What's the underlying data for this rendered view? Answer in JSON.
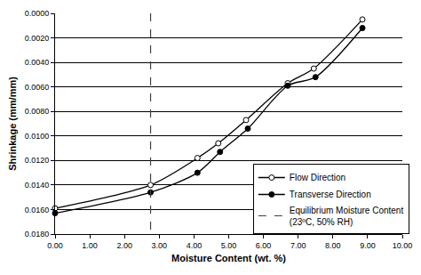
{
  "chart_data": {
    "type": "line",
    "x_label": "Moisture Content (wt. %)",
    "y_label": "Shrinkage (mm/mm)",
    "series": [
      {
        "name": "Flow Direction",
        "color": "#000000",
        "marker": "hollow circle",
        "line_style": "smooth",
        "x": [
          0.0,
          2.75,
          4.1,
          4.7,
          5.5,
          6.7,
          7.45,
          8.85
        ],
        "values": [
          0.0159,
          0.014,
          0.0118,
          0.0106,
          0.0087,
          0.0057,
          0.0045,
          0.0005
        ]
      },
      {
        "name": "Transverse Direction",
        "color": "#000000",
        "marker": "circle",
        "line_style": "smooth",
        "x": [
          0.0,
          2.75,
          4.1,
          4.75,
          5.55,
          6.7,
          7.5,
          8.85
        ],
        "values": [
          0.0163,
          0.0146,
          0.013,
          0.0113,
          0.0094,
          0.0059,
          0.0052,
          0.0012
        ]
      },
      {
        "name": "Equilibrium Moisture Content (23ºC, 50% RH)",
        "color": "#404040",
        "marker": "none",
        "line_style": "dashed",
        "x": [
          2.75,
          2.75
        ],
        "values": [
          0.0,
          0.018
        ]
      }
    ],
    "xlim": [
      0,
      10
    ],
    "xticks": [
      {
        "value": 0,
        "label": "0.00"
      },
      {
        "value": 1,
        "label": "1.00"
      },
      {
        "value": 2,
        "label": "2.00"
      },
      {
        "value": 3,
        "label": "3.00"
      },
      {
        "value": 4,
        "label": "4.00"
      },
      {
        "value": 5,
        "label": "5.00"
      },
      {
        "value": 6,
        "label": "6.00"
      },
      {
        "value": 7,
        "label": "7.00"
      },
      {
        "value": 8,
        "label": "8.00"
      },
      {
        "value": 9,
        "label": "9.00"
      },
      {
        "value": 10,
        "label": "10.00"
      }
    ],
    "ylim": [
      0.018,
      0
    ],
    "yticks": [
      {
        "value": 0,
        "label": "0.0000"
      },
      {
        "value": 0.002,
        "label": "0.0020"
      },
      {
        "value": 0.004,
        "label": "0.0040"
      },
      {
        "value": 0.006,
        "label": "0.0060"
      },
      {
        "value": 0.008,
        "label": "0.0080"
      },
      {
        "value": 0.01,
        "label": "0.0100"
      },
      {
        "value": 0.012,
        "label": "0.0120"
      },
      {
        "value": 0.014,
        "label": "0.0140"
      },
      {
        "value": 0.016,
        "label": "0.0160"
      },
      {
        "value": 0.018,
        "label": "0.0180"
      }
    ],
    "grid": "y",
    "legend": "lower right"
  }
}
